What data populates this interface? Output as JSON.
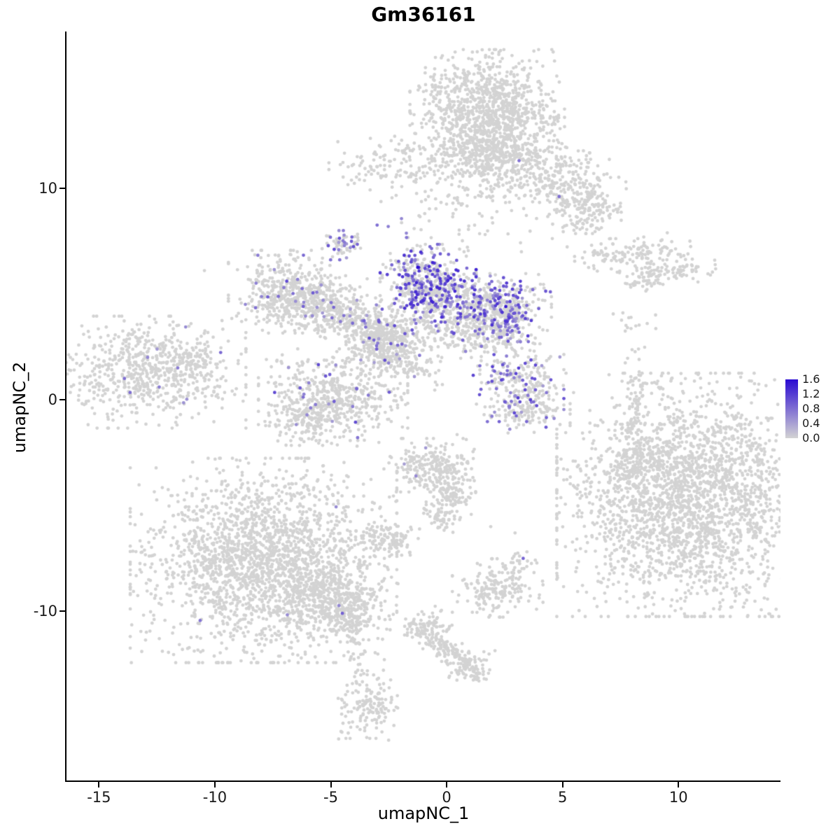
{
  "chart_data": {
    "type": "scatter",
    "title": "Gm36161",
    "xlabel": "umapNC_1",
    "ylabel": "umapNC_2",
    "xlim": [
      -16.4,
      14.4
    ],
    "ylim": [
      -18.0,
      17.4
    ],
    "x_ticks": [
      -15,
      -10,
      -5,
      0,
      5,
      10
    ],
    "y_ticks": [
      10,
      0,
      -10
    ],
    "grid": false,
    "point_color_low": "#d3d3d3",
    "point_color_high": "#2a0ad2",
    "point_radius": 2.4,
    "seed": 42,
    "legend": {
      "min": 0.0,
      "max": 1.6,
      "ticks": [
        1.6,
        1.2,
        0.8,
        0.4,
        0.0
      ]
    },
    "representation": "gaussian_clusters",
    "clusters": [
      {
        "name": "top-main-upper",
        "x": 1.75,
        "y": 13.9,
        "sx": 1.45,
        "sy": 1.15,
        "rot": 0,
        "n": 850,
        "ef": 0.002,
        "e0": 0.4,
        "e1": 0.8
      },
      {
        "name": "top-main-lower",
        "x": 1.9,
        "y": 11.8,
        "sx": 1.15,
        "sy": 0.95,
        "rot": 0,
        "n": 480,
        "ef": 0.002,
        "e0": 0.4,
        "e1": 0.8
      },
      {
        "name": "top-right-band",
        "x": 4.6,
        "y": 10.4,
        "sx": 1.35,
        "sy": 0.75,
        "rot": -0.35,
        "n": 330,
        "ef": 0.006,
        "e0": 0.4,
        "e1": 0.9
      },
      {
        "name": "top-right-tip",
        "x": 6.15,
        "y": 9.0,
        "sx": 0.6,
        "sy": 0.5,
        "rot": 0,
        "n": 120,
        "ef": 0,
        "e0": 0,
        "e1": 0
      },
      {
        "name": "top-left-wing",
        "x": -1.4,
        "y": 11.2,
        "sx": 1.6,
        "sy": 0.8,
        "rot": 0,
        "n": 140,
        "ef": 0,
        "e0": 0,
        "e1": 0
      },
      {
        "name": "top-below-sparse",
        "x": 0.7,
        "y": 9.2,
        "sx": 1.0,
        "sy": 0.9,
        "rot": 0,
        "n": 55,
        "ef": 0,
        "e0": 0,
        "e1": 0
      },
      {
        "name": "top-left-sparse",
        "x": -2.9,
        "y": 10.9,
        "sx": 0.8,
        "sy": 0.5,
        "rot": 0,
        "n": 30,
        "ef": 0,
        "e0": 0,
        "e1": 0
      },
      {
        "name": "right-loose-scatter",
        "x": 4.4,
        "y": 8.6,
        "sx": 0.9,
        "sy": 0.7,
        "rot": 0,
        "n": 16,
        "ef": 0,
        "e0": 0,
        "e1": 0
      },
      {
        "name": "upper-right-band-1",
        "x": 7.9,
        "y": 6.9,
        "sx": 1.15,
        "sy": 0.35,
        "rot": 0.12,
        "n": 130,
        "ef": 0,
        "e0": 0,
        "e1": 0
      },
      {
        "name": "upper-right-band-2",
        "x": 9.3,
        "y": 6.1,
        "sx": 1.0,
        "sy": 0.3,
        "rot": 0.1,
        "n": 95,
        "ef": 0,
        "e0": 0,
        "e1": 0
      },
      {
        "name": "upper-right-bits",
        "x": 8.5,
        "y": 5.5,
        "sx": 0.5,
        "sy": 0.25,
        "rot": 0,
        "n": 30,
        "ef": 0,
        "e0": 0,
        "e1": 0
      },
      {
        "name": "upper-right-sparse",
        "x": 7.7,
        "y": 3.7,
        "sx": 0.3,
        "sy": 0.5,
        "rot": 0,
        "n": 8,
        "ef": 0,
        "e0": 0,
        "e1": 0
      },
      {
        "name": "central-left-blob",
        "x": -7.0,
        "y": 5.1,
        "sx": 1.05,
        "sy": 0.85,
        "rot": 0,
        "n": 430,
        "ef": 0.05,
        "e0": 0.4,
        "e1": 1.0
      },
      {
        "name": "central-left-ext",
        "x": -5.5,
        "y": 4.6,
        "sx": 0.9,
        "sy": 0.6,
        "rot": 0,
        "n": 190,
        "ef": 0.04,
        "e0": 0.4,
        "e1": 1.0
      },
      {
        "name": "central-bridge",
        "x": -4.0,
        "y": 3.8,
        "sx": 1.0,
        "sy": 0.55,
        "rot": -0.35,
        "n": 240,
        "ef": 0.05,
        "e0": 0.4,
        "e1": 1.0
      },
      {
        "name": "central-star",
        "x": -2.5,
        "y": 2.7,
        "sx": 0.8,
        "sy": 0.7,
        "rot": 0,
        "n": 420,
        "ef": 0.05,
        "e0": 0.4,
        "e1": 1.1
      },
      {
        "name": "expression-upper",
        "x": -0.8,
        "y": 5.5,
        "sx": 0.9,
        "sy": 0.8,
        "rot": 0,
        "n": 470,
        "ef": 0.38,
        "e0": 0.5,
        "e1": 1.4
      },
      {
        "name": "expression-band",
        "x": 1.3,
        "y": 4.35,
        "sx": 1.4,
        "sy": 0.7,
        "rot": 0,
        "n": 520,
        "ef": 0.32,
        "e0": 0.4,
        "e1": 1.3
      },
      {
        "name": "expression-tip",
        "x": 2.6,
        "y": 4.0,
        "sx": 0.55,
        "sy": 0.55,
        "rot": 0,
        "n": 150,
        "ef": 0.3,
        "e0": 0.4,
        "e1": 1.3
      },
      {
        "name": "central-below-band",
        "x": 1.2,
        "y": 2.9,
        "sx": 1.1,
        "sy": 0.5,
        "rot": 0,
        "n": 170,
        "ef": 0.05,
        "e0": 0.4,
        "e1": 0.9
      },
      {
        "name": "small-upper-blob",
        "x": -4.5,
        "y": 7.3,
        "sx": 0.38,
        "sy": 0.3,
        "rot": 0,
        "n": 60,
        "ef": 0.3,
        "e0": 0.4,
        "e1": 1.1
      },
      {
        "name": "central-tail",
        "x": -1.8,
        "y": 1.6,
        "sx": 0.8,
        "sy": 0.28,
        "rot": -0.45,
        "n": 75,
        "ef": 0.03,
        "e0": 0.4,
        "e1": 0.8
      },
      {
        "name": "bridge-sparse",
        "x": -1.5,
        "y": 7.7,
        "sx": 1.0,
        "sy": 0.9,
        "rot": 0,
        "n": 22,
        "ef": 0.05,
        "e0": 0.4,
        "e1": 0.8
      },
      {
        "name": "lower-left-central",
        "x": -4.9,
        "y": 0.1,
        "sx": 1.4,
        "sy": 1.0,
        "rot": 0,
        "n": 520,
        "ef": 0.045,
        "e0": 0.4,
        "e1": 1.1
      },
      {
        "name": "lower-left-central-2",
        "x": -6.0,
        "y": -0.9,
        "sx": 0.8,
        "sy": 0.55,
        "rot": 0,
        "n": 140,
        "ef": 0.03,
        "e0": 0.4,
        "e1": 0.9
      },
      {
        "name": "far-left-main",
        "x": -12.8,
        "y": 1.3,
        "sx": 1.8,
        "sy": 1.15,
        "rot": 0,
        "n": 680,
        "ef": 0.012,
        "e0": 0.4,
        "e1": 1.0
      },
      {
        "name": "far-left-tip",
        "x": -10.9,
        "y": 1.8,
        "sx": 0.5,
        "sy": 0.4,
        "rot": 0,
        "n": 50,
        "ef": 0.02,
        "e0": 0.4,
        "e1": 0.9
      },
      {
        "name": "mid-right-blob",
        "x": 3.1,
        "y": 0.8,
        "sx": 0.85,
        "sy": 0.8,
        "rot": 0,
        "n": 250,
        "ef": 0.28,
        "e0": 0.4,
        "e1": 1.2
      },
      {
        "name": "mid-right-lower",
        "x": 3.6,
        "y": -0.5,
        "sx": 0.75,
        "sy": 0.5,
        "rot": 0,
        "n": 110,
        "ef": 0.06,
        "e0": 0.4,
        "e1": 1.0
      },
      {
        "name": "comma-upper",
        "x": -0.65,
        "y": -3.1,
        "sx": 0.8,
        "sy": 0.55,
        "rot": 0,
        "n": 210,
        "ef": 0.01,
        "e0": 0.4,
        "e1": 0.8
      },
      {
        "name": "comma-lower",
        "x": 0.1,
        "y": -4.3,
        "sx": 0.5,
        "sy": 0.7,
        "rot": 0,
        "n": 140,
        "ef": 0,
        "e0": 0,
        "e1": 0
      },
      {
        "name": "comma-tail",
        "x": -0.3,
        "y": -5.5,
        "sx": 0.3,
        "sy": 0.4,
        "rot": 0,
        "n": 45,
        "ef": 0,
        "e0": 0,
        "e1": 0
      },
      {
        "name": "small-oval",
        "x": -2.55,
        "y": -6.7,
        "sx": 0.6,
        "sy": 0.42,
        "rot": 0,
        "n": 110,
        "ef": 0,
        "e0": 0,
        "e1": 0
      },
      {
        "name": "bottom-left-main",
        "x": -7.9,
        "y": -7.6,
        "sx": 2.5,
        "sy": 2.1,
        "rot": 0,
        "n": 2100,
        "ef": 0.0005,
        "e0": 0.4,
        "e1": 0.8
      },
      {
        "name": "bottom-left-ext",
        "x": -5.2,
        "y": -9.4,
        "sx": 1.2,
        "sy": 0.85,
        "rot": 0,
        "n": 420,
        "ef": 0.002,
        "e0": 0.4,
        "e1": 0.8
      },
      {
        "name": "bottom-left-tail",
        "x": -4.3,
        "y": -10.3,
        "sx": 0.5,
        "sy": 0.5,
        "rot": 0,
        "n": 110,
        "ef": 0,
        "e0": 0,
        "e1": 0
      },
      {
        "name": "bottom-tail-sparse",
        "x": -3.9,
        "y": -11.9,
        "sx": 0.3,
        "sy": 0.7,
        "rot": 0,
        "n": 30,
        "ef": 0,
        "e0": 0,
        "e1": 0
      },
      {
        "name": "bottom-mid-blob",
        "x": 2.2,
        "y": -8.9,
        "sx": 0.85,
        "sy": 0.6,
        "rot": 0,
        "n": 190,
        "ef": 0,
        "e0": 0,
        "e1": 0
      },
      {
        "name": "bottom-mid-upper",
        "x": 3.2,
        "y": -7.6,
        "sx": 0.3,
        "sy": 0.25,
        "rot": 0,
        "n": 18,
        "ef": 0,
        "e0": 0,
        "e1": 0
      },
      {
        "name": "bottom-band-head",
        "x": -0.75,
        "y": -10.8,
        "sx": 0.5,
        "sy": 0.45,
        "rot": 0,
        "n": 95,
        "ef": 0,
        "e0": 0,
        "e1": 0
      },
      {
        "name": "bottom-band",
        "x": 0.1,
        "y": -11.9,
        "sx": 0.9,
        "sy": 0.28,
        "rot": -0.6,
        "n": 120,
        "ef": 0,
        "e0": 0,
        "e1": 0
      },
      {
        "name": "bottom-band-end",
        "x": 1.05,
        "y": -12.65,
        "sx": 0.45,
        "sy": 0.35,
        "rot": 0,
        "n": 75,
        "ef": 0,
        "e0": 0,
        "e1": 0
      },
      {
        "name": "bottom-small-blob",
        "x": -3.3,
        "y": -14.4,
        "sx": 0.6,
        "sy": 0.7,
        "rot": 0,
        "n": 150,
        "ef": 0,
        "e0": 0,
        "e1": 0
      },
      {
        "name": "bottom-small-sparse",
        "x": -4.2,
        "y": -15.6,
        "sx": 0.8,
        "sy": 0.4,
        "rot": 0,
        "n": 7,
        "ef": 0,
        "e0": 0,
        "e1": 0
      },
      {
        "name": "right-main",
        "x": 10.5,
        "y": -4.5,
        "sx": 2.5,
        "sy": 2.5,
        "rot": 0,
        "n": 2500,
        "ef": 0,
        "e0": 0,
        "e1": 0
      },
      {
        "name": "right-left-edge",
        "x": 8.2,
        "y": -3.1,
        "sx": 0.5,
        "sy": 0.9,
        "rot": 0,
        "n": 140,
        "ef": 0,
        "e0": 0,
        "e1": 0
      },
      {
        "name": "right-streak",
        "x": 8.15,
        "y": -0.3,
        "sx": 0.18,
        "sy": 1.0,
        "rot": 0,
        "n": 55,
        "ef": 0,
        "e0": 0,
        "e1": 0
      },
      {
        "name": "right-above-sparse",
        "x": 8.0,
        "y": 2.5,
        "sx": 0.6,
        "sy": 1.0,
        "rot": 0,
        "n": 10,
        "ef": 0,
        "e0": 0,
        "e1": 0
      }
    ],
    "singles_gray": [
      [
        -10.45,
        6.1
      ],
      [
        0.45,
        -1.65
      ],
      [
        -0.85,
        -2.05
      ],
      [
        2.95,
        -6.3
      ],
      [
        1.9,
        -6.0
      ],
      [
        -2.1,
        -8.7
      ],
      [
        7.6,
        4.1
      ],
      [
        7.8,
        3.4
      ],
      [
        8.3,
        1.9
      ]
    ],
    "singles_expressing": [
      [
        -1.25,
        6.25,
        1.6
      ],
      [
        2.55,
        4.4,
        1.5
      ],
      [
        4.85,
        9.6,
        0.8
      ],
      [
        -3.0,
        8.25,
        0.8
      ],
      [
        -4.5,
        -10.1,
        0.9
      ],
      [
        3.3,
        -7.5,
        0.9
      ],
      [
        4.3,
        -0.85,
        0.9
      ],
      [
        -6.9,
        5.6,
        1.1
      ],
      [
        -13.9,
        1.0,
        0.8
      ],
      [
        -12.4,
        0.6,
        0.7
      ],
      [
        -12.9,
        2.0,
        0.6
      ],
      [
        -11.6,
        1.5,
        0.7
      ]
    ]
  }
}
